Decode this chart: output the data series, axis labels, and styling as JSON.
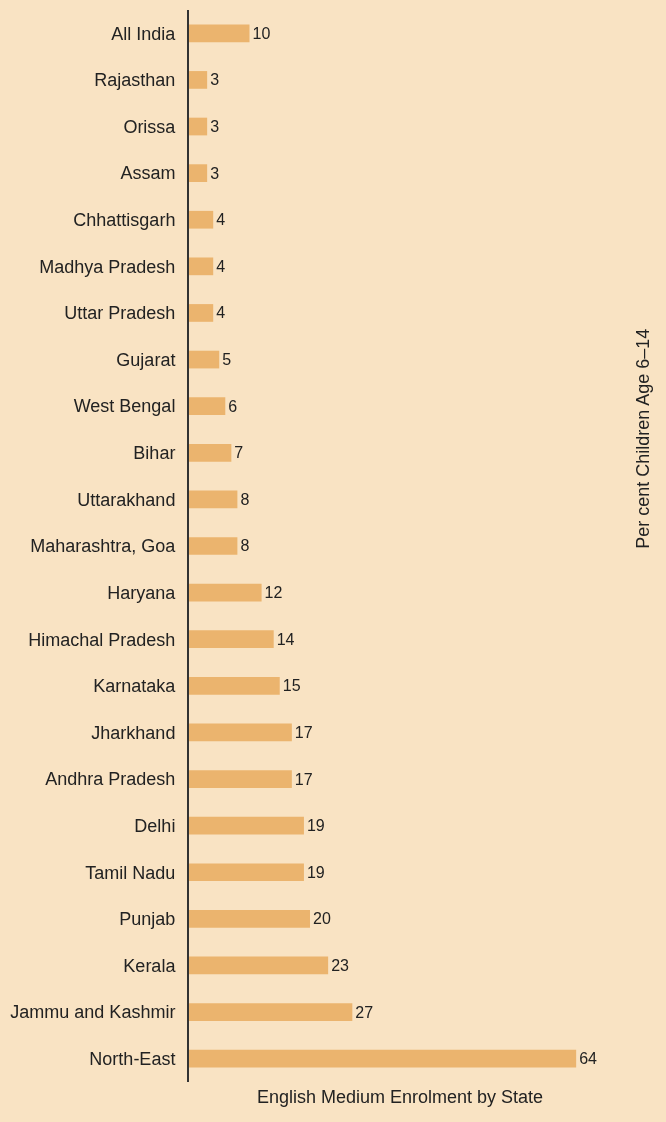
{
  "chart_data": {
    "type": "bar",
    "orientation": "horizontal",
    "xlabel": "English Medium Enrolment by State",
    "ylabel": "Per cent Children Age 6–14",
    "categories": [
      "All India",
      "Rajasthan",
      "Orissa",
      "Assam",
      "Chhattisgarh",
      "Madhya Pradesh",
      "Uttar Pradesh",
      "Gujarat",
      "West Bengal",
      "Bihar",
      "Uttarakhand",
      "Maharashtra, Goa",
      "Haryana",
      "Himachal Pradesh",
      "Karnataka",
      "Jharkhand",
      "Andhra Pradesh",
      "Delhi",
      "Tamil Nadu",
      "Punjab",
      "Kerala",
      "Jammu and Kashmir",
      "North-East"
    ],
    "values": [
      10,
      3,
      3,
      3,
      4,
      4,
      4,
      5,
      6,
      7,
      8,
      8,
      12,
      14,
      15,
      17,
      17,
      19,
      19,
      20,
      23,
      27,
      64
    ],
    "color": "#ebb46e",
    "data_labels": true,
    "grid": false,
    "legend": false
  }
}
